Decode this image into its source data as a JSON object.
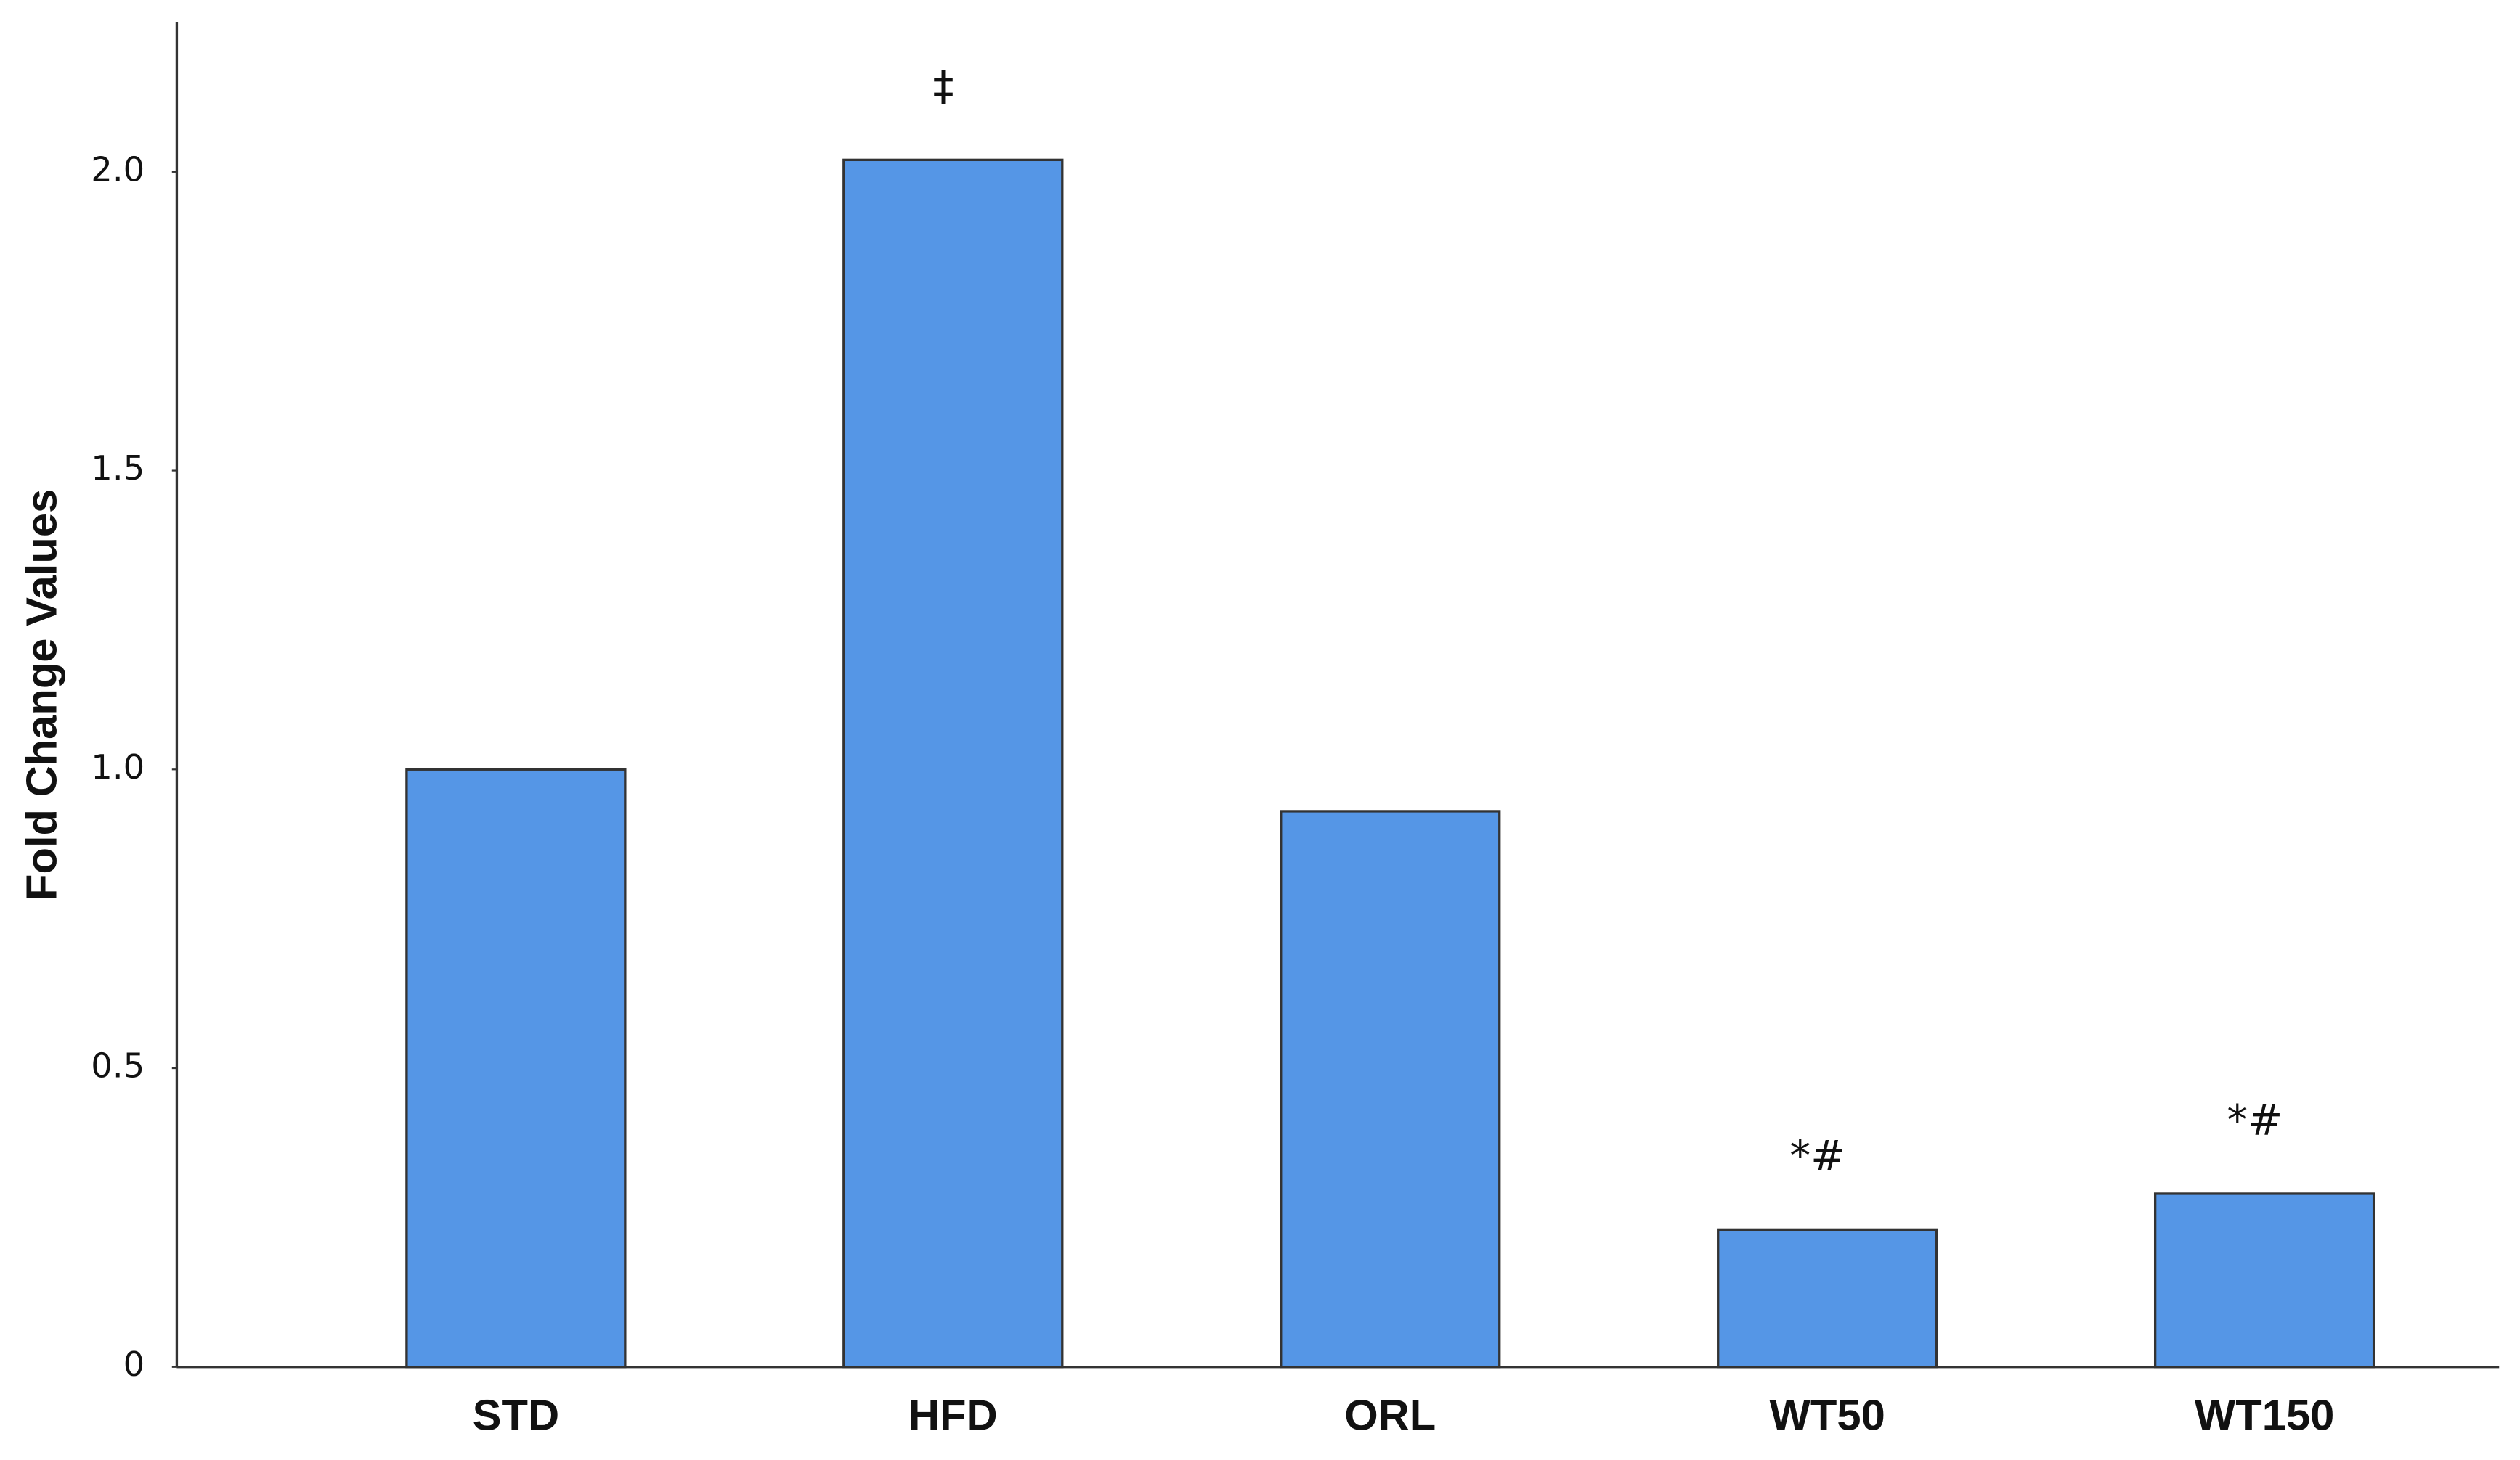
{
  "chart_data": {
    "type": "bar",
    "y_label": "Fold Change Values",
    "categories": [
      "STD",
      "HFD",
      "ORL",
      "WT50",
      "WT150"
    ],
    "values": [
      1.0,
      2.02,
      0.93,
      0.23,
      0.29
    ],
    "annotations": [
      null,
      "‡",
      null,
      "*#",
      "*#"
    ],
    "color": "#5596e6",
    "ylim": [
      0,
      2.25
    ],
    "yticks": [
      0,
      0.5,
      {
        "value": 1,
        "label": "1.0"
      },
      1.5,
      {
        "value": 2,
        "label": "2.0"
      }
    ],
    "grid": false
  }
}
